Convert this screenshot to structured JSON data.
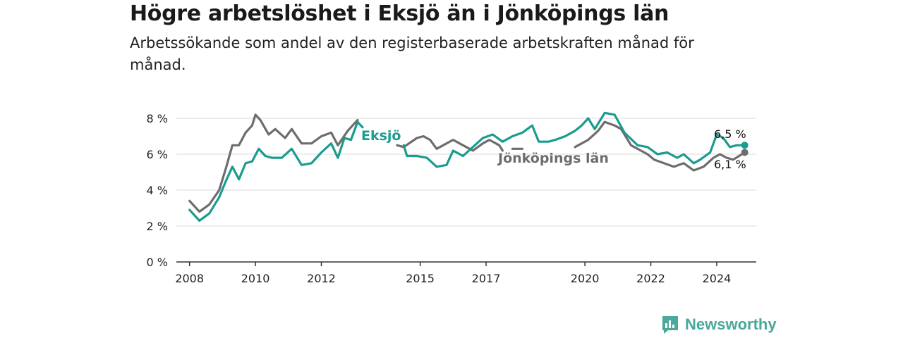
{
  "header": {
    "title": "Högre arbetslöshet i Eksjö än i Jönköpings län",
    "subtitle": "Arbetssökande som andel av den registerbaserade arbetskraften månad för månad."
  },
  "brand": {
    "name": "Newsworthy",
    "color": "#4aa89c",
    "icon": "newsworthy-bar-chart-icon"
  },
  "colors": {
    "eksjo": "#1a9c8e",
    "lan": "#6d6d6d",
    "grid": "#d9d9d9",
    "axis": "#333333"
  },
  "chart_data": {
    "type": "line",
    "xlim": [
      2007.6,
      2025.2
    ],
    "ylim": [
      0,
      8
    ],
    "yticks": [
      0,
      2,
      4,
      6,
      8
    ],
    "ytick_labels": [
      "0 %",
      "2 %",
      "4 %",
      "6 %",
      "8 %"
    ],
    "xticks": [
      2008,
      2010,
      2012,
      2015,
      2017,
      2020,
      2022,
      2024
    ],
    "xtick_labels": [
      "2008",
      "2010",
      "2012",
      "2015",
      "2017",
      "2020",
      "2022",
      "2024"
    ],
    "grid": true,
    "series": [
      {
        "name": "Eksjö",
        "end_label": "6,5 %",
        "points": [
          [
            2008.0,
            2.9
          ],
          [
            2008.3,
            2.3
          ],
          [
            2008.6,
            2.7
          ],
          [
            2008.9,
            3.6
          ],
          [
            2009.1,
            4.5
          ],
          [
            2009.3,
            5.3
          ],
          [
            2009.5,
            4.6
          ],
          [
            2009.7,
            5.5
          ],
          [
            2009.9,
            5.6
          ],
          [
            2010.1,
            6.3
          ],
          [
            2010.3,
            5.9
          ],
          [
            2010.5,
            5.8
          ],
          [
            2010.8,
            5.8
          ],
          [
            2011.1,
            6.3
          ],
          [
            2011.4,
            5.4
          ],
          [
            2011.7,
            5.5
          ],
          [
            2012.0,
            6.1
          ],
          [
            2012.3,
            6.6
          ],
          [
            2012.5,
            5.8
          ],
          [
            2012.7,
            6.9
          ],
          [
            2012.9,
            6.8
          ],
          [
            2013.1,
            7.8
          ],
          [
            2013.25,
            7.5
          ],
          [
            null,
            null
          ],
          [
            2014.5,
            6.5
          ],
          [
            2014.6,
            5.9
          ],
          [
            2014.9,
            5.9
          ],
          [
            2015.2,
            5.8
          ],
          [
            2015.5,
            5.3
          ],
          [
            2015.8,
            5.4
          ],
          [
            2016.0,
            6.2
          ],
          [
            2016.3,
            5.9
          ],
          [
            2016.6,
            6.4
          ],
          [
            2016.9,
            6.9
          ],
          [
            2017.2,
            7.1
          ],
          [
            2017.5,
            6.7
          ],
          [
            2017.8,
            7.0
          ],
          [
            2018.1,
            7.2
          ],
          [
            2018.4,
            7.6
          ],
          [
            2018.6,
            6.7
          ],
          [
            2018.9,
            6.7
          ],
          [
            2019.1,
            6.8
          ],
          [
            2019.4,
            7.0
          ],
          [
            2019.7,
            7.3
          ],
          [
            2019.9,
            7.6
          ],
          [
            2020.1,
            8.0
          ],
          [
            2020.3,
            7.4
          ],
          [
            2020.6,
            8.3
          ],
          [
            2020.9,
            8.2
          ],
          [
            2021.2,
            7.2
          ],
          [
            2021.6,
            6.5
          ],
          [
            2021.9,
            6.4
          ],
          [
            2022.2,
            6.0
          ],
          [
            2022.5,
            6.1
          ],
          [
            2022.8,
            5.8
          ],
          [
            2023.0,
            6.0
          ],
          [
            2023.3,
            5.5
          ],
          [
            2023.5,
            5.7
          ],
          [
            2023.8,
            6.1
          ],
          [
            2024.0,
            7.1
          ],
          [
            2024.2,
            6.9
          ],
          [
            2024.4,
            6.4
          ],
          [
            2024.6,
            6.5
          ],
          [
            2024.85,
            6.5
          ]
        ]
      },
      {
        "name": "Jönköpings län",
        "end_label": "6,1 %",
        "points": [
          [
            2008.0,
            3.4
          ],
          [
            2008.3,
            2.8
          ],
          [
            2008.6,
            3.2
          ],
          [
            2008.9,
            4.0
          ],
          [
            2009.1,
            5.2
          ],
          [
            2009.3,
            6.5
          ],
          [
            2009.5,
            6.5
          ],
          [
            2009.7,
            7.2
          ],
          [
            2009.9,
            7.6
          ],
          [
            2010.0,
            8.2
          ],
          [
            2010.15,
            7.9
          ],
          [
            2010.4,
            7.1
          ],
          [
            2010.6,
            7.4
          ],
          [
            2010.9,
            6.9
          ],
          [
            2011.1,
            7.4
          ],
          [
            2011.4,
            6.6
          ],
          [
            2011.7,
            6.6
          ],
          [
            2012.0,
            7.0
          ],
          [
            2012.3,
            7.2
          ],
          [
            2012.5,
            6.5
          ],
          [
            2012.8,
            7.3
          ],
          [
            2013.1,
            7.9
          ],
          [
            null,
            null
          ],
          [
            2014.3,
            6.5
          ],
          [
            2014.5,
            6.4
          ],
          [
            2014.9,
            6.9
          ],
          [
            2015.1,
            7.0
          ],
          [
            2015.3,
            6.8
          ],
          [
            2015.5,
            6.3
          ],
          [
            2015.8,
            6.6
          ],
          [
            2016.0,
            6.8
          ],
          [
            2016.3,
            6.5
          ],
          [
            2016.6,
            6.2
          ],
          [
            2016.9,
            6.6
          ],
          [
            2017.1,
            6.8
          ],
          [
            2017.4,
            6.5
          ],
          [
            2017.5,
            6.2
          ],
          [
            null,
            null
          ],
          [
            2017.8,
            6.3
          ],
          [
            2018.1,
            6.3
          ],
          [
            null,
            null
          ],
          [
            2019.7,
            6.4
          ],
          [
            2019.9,
            6.6
          ],
          [
            2020.1,
            6.8
          ],
          [
            2020.4,
            7.3
          ],
          [
            2020.6,
            7.8
          ],
          [
            2020.9,
            7.6
          ],
          [
            2021.1,
            7.4
          ],
          [
            2021.4,
            6.5
          ],
          [
            2021.7,
            6.2
          ],
          [
            2021.9,
            6.0
          ],
          [
            2022.1,
            5.7
          ],
          [
            2022.4,
            5.5
          ],
          [
            2022.7,
            5.3
          ],
          [
            2023.0,
            5.5
          ],
          [
            2023.3,
            5.1
          ],
          [
            2023.6,
            5.3
          ],
          [
            2023.9,
            5.8
          ],
          [
            2024.1,
            6.0
          ],
          [
            2024.3,
            5.8
          ],
          [
            2024.5,
            5.7
          ],
          [
            2024.85,
            6.1
          ]
        ]
      }
    ]
  }
}
